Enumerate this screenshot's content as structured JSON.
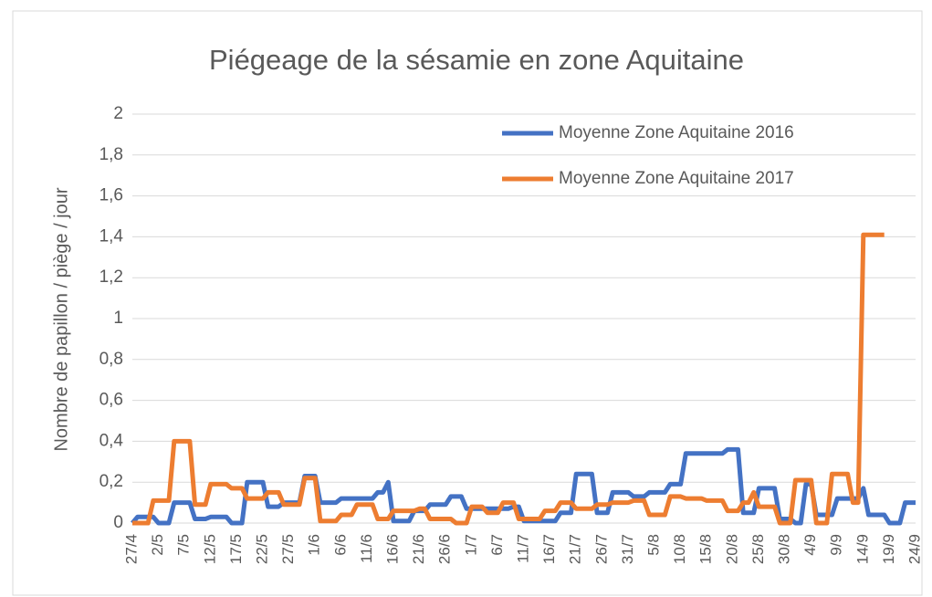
{
  "chart_data": {
    "type": "line",
    "title": "Piégeage de la sésamie en zone Aquitaine",
    "y_label": "Nombre de papillon / piège / jour",
    "categories": [
      "27/4",
      null,
      null,
      null,
      null,
      "2/5",
      null,
      null,
      null,
      null,
      "7/5",
      null,
      null,
      null,
      null,
      "12/5",
      null,
      null,
      null,
      null,
      "17/5",
      null,
      null,
      null,
      null,
      "22/5",
      null,
      null,
      null,
      null,
      "27/5",
      null,
      null,
      null,
      null,
      "1/6",
      null,
      null,
      null,
      null,
      "6/6",
      null,
      null,
      null,
      null,
      "11/6",
      null,
      null,
      null,
      null,
      "16/6",
      null,
      null,
      null,
      null,
      "21/6",
      null,
      null,
      null,
      null,
      "26/6",
      null,
      null,
      null,
      null,
      "1/7",
      null,
      null,
      null,
      null,
      "6/7",
      null,
      null,
      null,
      null,
      "11/7",
      null,
      null,
      null,
      null,
      "16/7",
      null,
      null,
      null,
      null,
      "21/7",
      null,
      null,
      null,
      null,
      "26/7",
      null,
      null,
      null,
      null,
      "31/7",
      null,
      null,
      null,
      null,
      "5/8",
      null,
      null,
      null,
      null,
      "10/8",
      null,
      null,
      null,
      null,
      "15/8",
      null,
      null,
      null,
      null,
      "20/8",
      null,
      null,
      null,
      null,
      "25/8",
      null,
      null,
      null,
      null,
      "30/8",
      null,
      null,
      null,
      null,
      "4/9",
      null,
      null,
      null,
      null,
      "9/9",
      null,
      null,
      null,
      null,
      "14/9",
      null,
      null,
      null,
      null,
      "19/9",
      null,
      null,
      null,
      null,
      "24/9"
    ],
    "series": [
      {
        "name": "Moyenne Zone Aquitaine 2016",
        "color": "#4472c4",
        "values": [
          0,
          0.03,
          0.03,
          0.03,
          0.03,
          0,
          0,
          0,
          0.1,
          0.1,
          0.1,
          0.1,
          0.02,
          0.02,
          0.02,
          0.03,
          0.03,
          0.03,
          0.03,
          0,
          0,
          0,
          0.2,
          0.2,
          0.2,
          0.2,
          0.08,
          0.08,
          0.08,
          0.1,
          0.1,
          0.1,
          0.1,
          0.23,
          0.23,
          0.23,
          0.1,
          0.1,
          0.1,
          0.1,
          0.12,
          0.12,
          0.12,
          0.12,
          0.12,
          0.12,
          0.12,
          0.15,
          0.15,
          0.2,
          0.01,
          0.01,
          0.01,
          0.01,
          0.06,
          0.06,
          0.06,
          0.09,
          0.09,
          0.09,
          0.09,
          0.13,
          0.13,
          0.13,
          0.07,
          0.07,
          0.07,
          0.07,
          0.07,
          0.07,
          0.07,
          0.07,
          0.07,
          0.08,
          0.08,
          0.01,
          0.01,
          0.01,
          0.01,
          0.01,
          0.01,
          0.01,
          0.05,
          0.05,
          0.05,
          0.24,
          0.24,
          0.24,
          0.24,
          0.05,
          0.05,
          0.05,
          0.15,
          0.15,
          0.15,
          0.15,
          0.13,
          0.13,
          0.13,
          0.15,
          0.15,
          0.15,
          0.15,
          0.19,
          0.19,
          0.19,
          0.34,
          0.34,
          0.34,
          0.34,
          0.34,
          0.34,
          0.34,
          0.34,
          0.36,
          0.36,
          0.36,
          0.05,
          0.05,
          0.05,
          0.17,
          0.17,
          0.17,
          0.17,
          0.02,
          0.02,
          0.02,
          0,
          0,
          0.19,
          0.19,
          0.04,
          0.04,
          0.04,
          0.04,
          0.12,
          0.12,
          0.12,
          0.12,
          0.12,
          0.17,
          0.04,
          0.04,
          0.04,
          0.04,
          0,
          0,
          0,
          0.1,
          0.1,
          0.1
        ]
      },
      {
        "name": "Moyenne Zone Aquitaine 2017",
        "color": "#ed7d31",
        "values": [
          0,
          0,
          0,
          0,
          0.11,
          0.11,
          0.11,
          0.11,
          0.4,
          0.4,
          0.4,
          0.4,
          0.09,
          0.09,
          0.09,
          0.19,
          0.19,
          0.19,
          0.19,
          0.17,
          0.17,
          0.17,
          0.12,
          0.12,
          0.12,
          0.12,
          0.15,
          0.15,
          0.15,
          0.09,
          0.09,
          0.09,
          0.09,
          0.22,
          0.22,
          0.22,
          0.01,
          0.01,
          0.01,
          0.01,
          0.04,
          0.04,
          0.04,
          0.09,
          0.09,
          0.09,
          0.09,
          0.02,
          0.02,
          0.02,
          0.06,
          0.06,
          0.06,
          0.06,
          0.06,
          0.07,
          0.07,
          0.02,
          0.02,
          0.02,
          0.02,
          0.02,
          0,
          0,
          0,
          0.08,
          0.08,
          0.08,
          0.05,
          0.05,
          0.05,
          0.1,
          0.1,
          0.1,
          0.02,
          0.02,
          0.02,
          0.02,
          0.02,
          0.06,
          0.06,
          0.06,
          0.1,
          0.1,
          0.1,
          0.07,
          0.07,
          0.07,
          0.07,
          0.09,
          0.09,
          0.09,
          0.1,
          0.1,
          0.1,
          0.1,
          0.11,
          0.11,
          0.11,
          0.04,
          0.04,
          0.04,
          0.04,
          0.13,
          0.13,
          0.13,
          0.12,
          0.12,
          0.12,
          0.12,
          0.11,
          0.11,
          0.11,
          0.11,
          0.06,
          0.06,
          0.06,
          0.1,
          0.1,
          0.15,
          0.08,
          0.08,
          0.08,
          0.08,
          0,
          0,
          0,
          0.21,
          0.21,
          0.21,
          0.21,
          0,
          0,
          0,
          0.24,
          0.24,
          0.24,
          0.24,
          0.1,
          0.1,
          1.41,
          1.41,
          1.41,
          1.41,
          1.41,
          null,
          null,
          null,
          null,
          null,
          null
        ]
      }
    ],
    "ylim": [
      0,
      2
    ],
    "yticks": [
      0,
      {
        "value": 0.2,
        "label": "0,2"
      },
      {
        "value": 0.4,
        "label": "0,4"
      },
      {
        "value": 0.6,
        "label": "0,6"
      },
      {
        "value": 0.8,
        "label": "0,8"
      },
      1,
      {
        "value": 1.2,
        "label": "1,2"
      },
      {
        "value": 1.4,
        "label": "1,4"
      },
      {
        "value": 1.6,
        "label": "1,6"
      },
      {
        "value": 1.8,
        "label": "1,8"
      },
      2
    ],
    "grid": true,
    "legend": "top-right"
  }
}
